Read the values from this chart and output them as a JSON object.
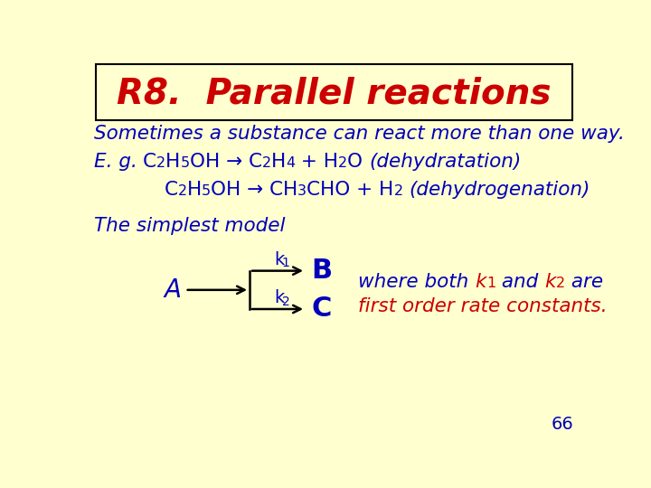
{
  "bg_color": "#FFFFD0",
  "title": "R8.  Parallel reactions",
  "title_color": "#CC0000",
  "title_fontsize": 28,
  "title_box_edge": "#000000",
  "blue": "#0000BB",
  "red": "#CC0000",
  "black": "#000000",
  "slide_number": "66",
  "line1": "Sometimes a substance can react more than one way.",
  "simplest_model": "The simplest model",
  "where_line2": "first order rate constants.",
  "A_label": "A",
  "B_label": "B",
  "C_label": "C"
}
